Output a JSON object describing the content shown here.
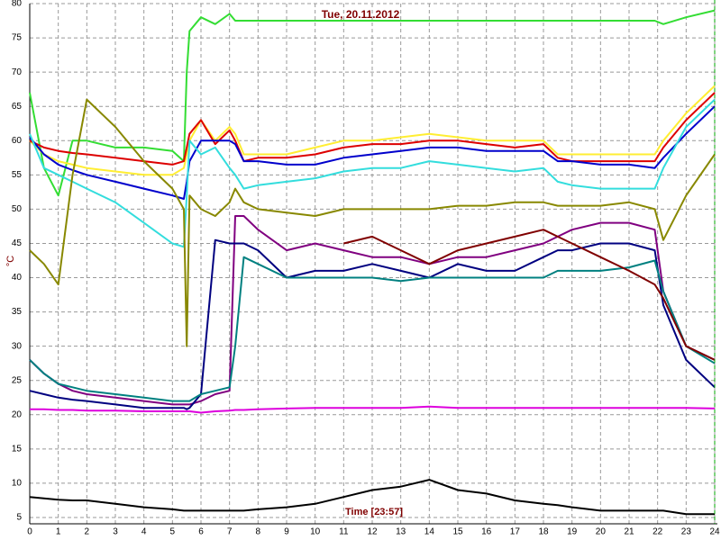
{
  "chart_data": {
    "type": "line",
    "title": "Tue, 20.11.2012",
    "ylabel": "°C",
    "xlabel": "Time [23:57]",
    "x": [
      0,
      0.5,
      1,
      1.5,
      2,
      3,
      4,
      5,
      5.4,
      5.5,
      5.6,
      6,
      6.5,
      7,
      7.2,
      7.5,
      8,
      9,
      10,
      11,
      12,
      13,
      14,
      15,
      16,
      17,
      18,
      18.5,
      19,
      20,
      21,
      21.9,
      22.2,
      23,
      24
    ],
    "series": [
      {
        "color": "#33dd33",
        "values": [
          67,
          56,
          52,
          60,
          60,
          59,
          59,
          58.5,
          57,
          70,
          76,
          78,
          77,
          78.5,
          77.5,
          77.5,
          77.5,
          77.5,
          77.5,
          77.5,
          77.5,
          77.5,
          77.5,
          77.5,
          77.5,
          77.5,
          77.5,
          77.5,
          77.5,
          77.5,
          77.5,
          77.5,
          77,
          78,
          79
        ]
      },
      {
        "color": "#ffee33",
        "values": [
          60,
          58,
          57,
          56.5,
          56,
          55.5,
          55,
          55,
          56,
          58,
          60,
          63,
          60,
          62,
          61,
          58,
          58,
          58,
          59,
          60,
          60,
          60.5,
          61,
          60.5,
          60,
          60,
          60,
          58,
          58,
          58,
          58,
          58,
          60,
          64,
          68
        ]
      },
      {
        "color": "#dd0000",
        "values": [
          60,
          59,
          58.5,
          58.2,
          58,
          57.5,
          57,
          56.5,
          57,
          59,
          61,
          63,
          59.5,
          61.5,
          60,
          57,
          57.5,
          57.5,
          58,
          59,
          59.5,
          59.5,
          60,
          60,
          59.5,
          59,
          59.5,
          57.5,
          57,
          57,
          57,
          57,
          59,
          63,
          67
        ]
      },
      {
        "color": "#0000cc",
        "values": [
          60.5,
          58,
          56.5,
          55.7,
          55,
          54,
          53,
          52,
          51.5,
          54,
          57,
          60,
          60,
          60,
          59.5,
          57,
          57,
          56.5,
          56.5,
          57.5,
          58,
          58.5,
          59,
          59,
          58.5,
          58.5,
          58.5,
          57,
          57,
          56.5,
          56.5,
          56,
          57.5,
          61,
          65
        ]
      },
      {
        "color": "#33dddd",
        "values": [
          61,
          56,
          55,
          54,
          53,
          51,
          48,
          45,
          44.5,
          52,
          60,
          58,
          59,
          56,
          55,
          53,
          53.5,
          54,
          54.5,
          55.5,
          56,
          56,
          57,
          56.5,
          56,
          55.5,
          56,
          54,
          53.5,
          53,
          53,
          53,
          56,
          62,
          66
        ]
      },
      {
        "color": "#888800",
        "values": [
          44,
          42,
          39,
          55,
          66,
          62,
          57,
          53,
          50,
          30,
          52,
          50,
          49,
          51,
          53,
          51,
          50,
          49.5,
          49,
          50,
          50,
          50,
          50,
          50.5,
          50.5,
          51,
          51,
          50.5,
          50.5,
          50.5,
          51,
          50,
          45.5,
          52,
          58
        ]
      },
      {
        "color": "#800080",
        "values": [
          28,
          26,
          24.5,
          23.5,
          23,
          22.5,
          22,
          21.5,
          21.5,
          21.5,
          21.5,
          22,
          23,
          23.5,
          49,
          49,
          47,
          44,
          45,
          44,
          43,
          43,
          42,
          43,
          43,
          44,
          45,
          46,
          47,
          48,
          48,
          47,
          38,
          30,
          28
        ]
      },
      {
        "color": "#000080",
        "values": [
          23.5,
          23,
          22.5,
          22.2,
          22,
          21.5,
          21,
          21,
          21,
          20.8,
          21,
          23,
          45.5,
          45,
          45,
          45,
          44,
          40,
          41,
          41,
          42,
          41,
          40,
          42,
          41,
          41,
          43,
          44,
          44,
          45,
          45,
          44,
          36,
          28,
          24
        ]
      },
      {
        "color": "#008080",
        "values": [
          28,
          26,
          24.5,
          24,
          23.5,
          23,
          22.5,
          22,
          22,
          22,
          22,
          23,
          23.5,
          24,
          30,
          43,
          42,
          40,
          40,
          40,
          40,
          39.5,
          40,
          40,
          40,
          40,
          40,
          41,
          41,
          41,
          41.5,
          42.5,
          38,
          30,
          27.5
        ]
      },
      {
        "color": "#800000",
        "values": [
          null,
          null,
          null,
          null,
          null,
          null,
          null,
          null,
          null,
          null,
          null,
          null,
          null,
          null,
          null,
          null,
          null,
          null,
          null,
          45,
          46,
          44,
          42,
          44,
          45,
          46,
          47,
          46,
          45,
          43,
          41,
          39,
          37,
          30,
          28
        ]
      },
      {
        "color": "#dd00dd",
        "values": [
          20.8,
          20.8,
          20.7,
          20.7,
          20.6,
          20.6,
          20.5,
          20.5,
          20.5,
          20.5,
          20.5,
          20.3,
          20.5,
          20.6,
          20.7,
          20.7,
          20.8,
          20.9,
          21,
          21,
          21,
          21,
          21.2,
          21,
          21,
          21,
          21,
          21,
          21,
          21,
          21,
          21,
          21,
          21,
          20.9
        ]
      },
      {
        "color": "#000000",
        "values": [
          8,
          7.8,
          7.6,
          7.5,
          7.5,
          7,
          6.5,
          6.2,
          6,
          6,
          6,
          6,
          6,
          6,
          6,
          6,
          6.2,
          6.5,
          7,
          8,
          9,
          9.5,
          10.5,
          9,
          8.5,
          7.5,
          7,
          6.8,
          6.5,
          6,
          6,
          6,
          6,
          5.5,
          5.5
        ]
      }
    ],
    "xlim": [
      0,
      24
    ],
    "xticks": [
      0,
      1,
      2,
      3,
      4,
      5,
      6,
      7,
      8,
      9,
      10,
      11,
      12,
      13,
      14,
      15,
      16,
      17,
      18,
      19,
      20,
      21,
      22,
      23,
      24
    ],
    "ylim": [
      5,
      80
    ],
    "yticks": [
      5,
      10,
      15,
      20,
      25,
      30,
      35,
      40,
      45,
      50,
      55,
      60,
      65,
      70,
      75,
      80
    ],
    "grid": true
  }
}
